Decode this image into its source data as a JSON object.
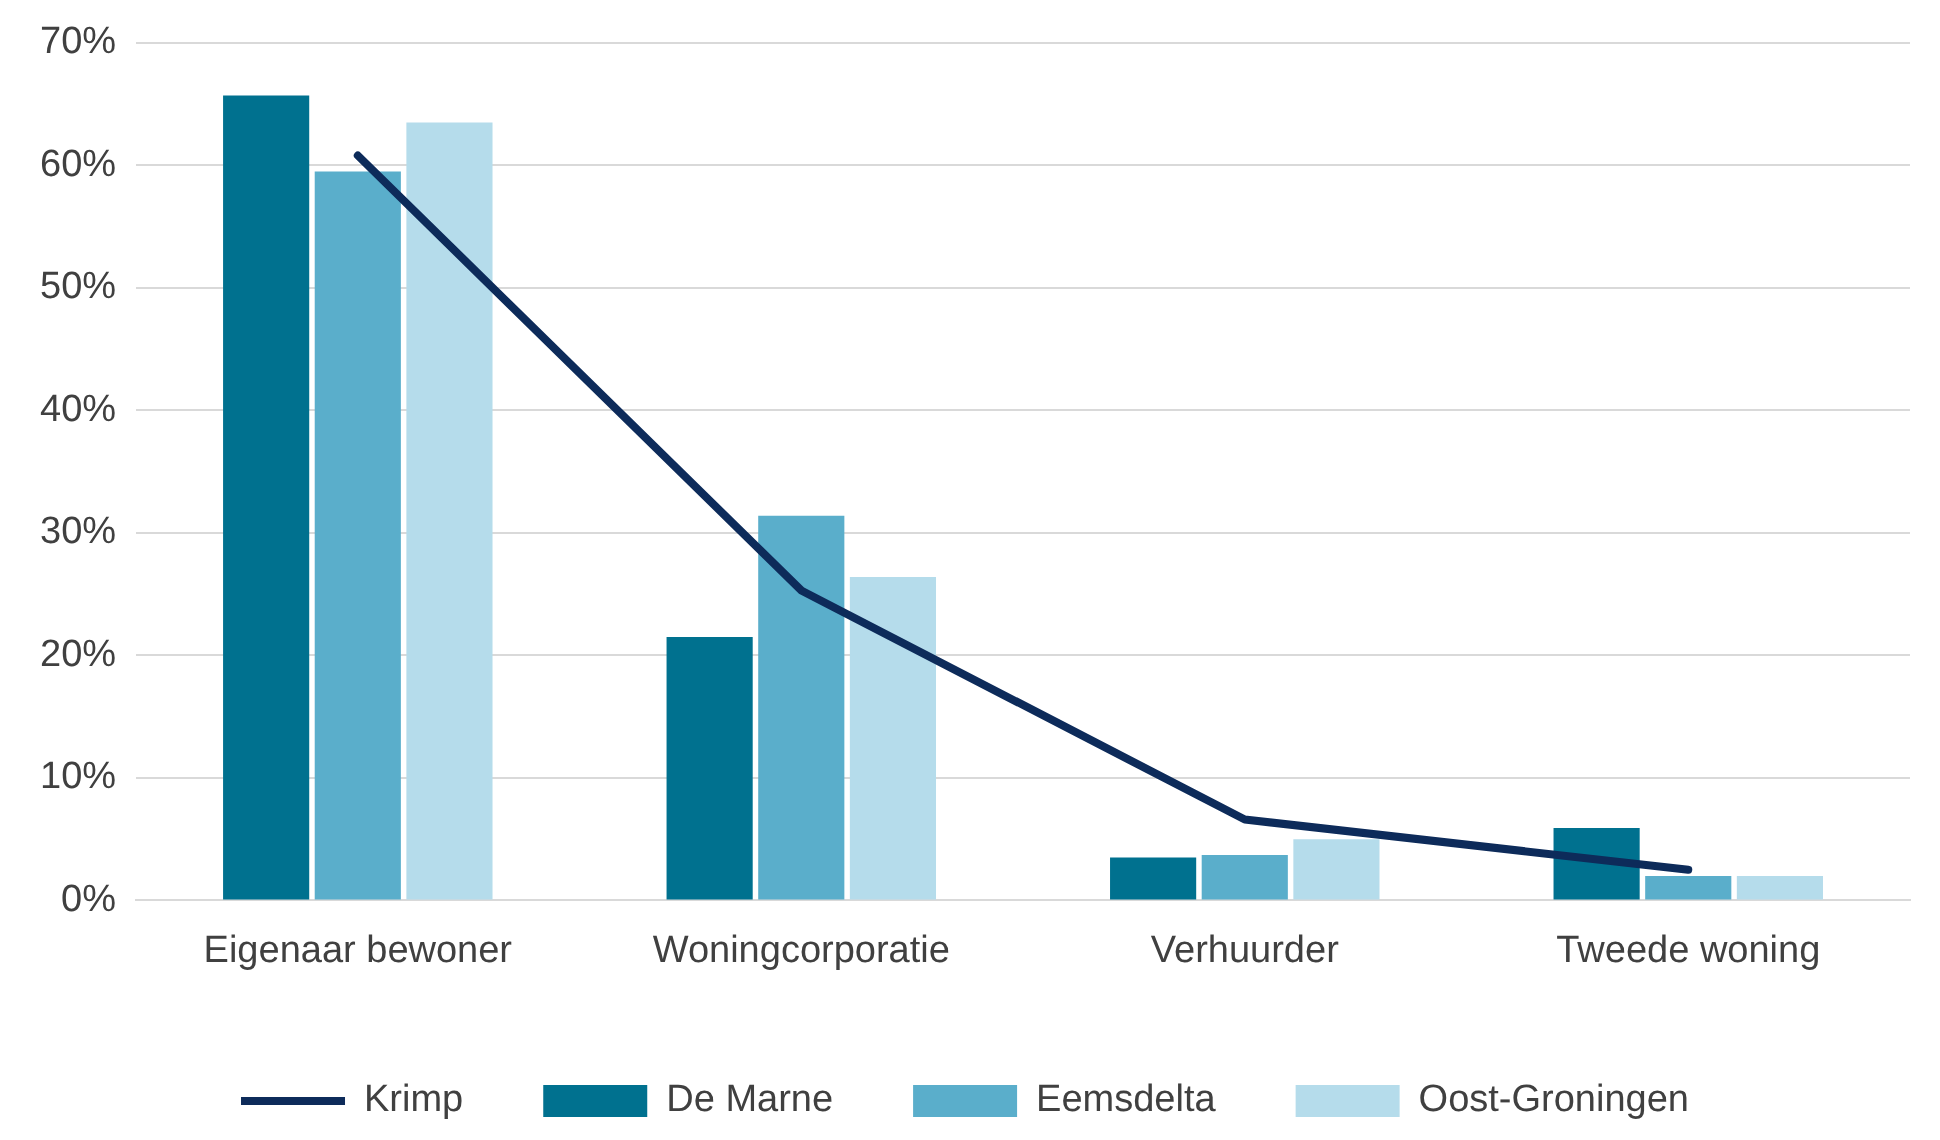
{
  "chart_data": {
    "type": "bar",
    "categories": [
      "Eigenaar bewoner",
      "Woningcorporatie",
      "Verhuurder",
      "Tweede woning"
    ],
    "series": [
      {
        "name": "De Marne",
        "color": "#00718f",
        "values": [
          65.7,
          21.5,
          3.5,
          5.9
        ]
      },
      {
        "name": "Eemsdelta",
        "color": "#5aaecb",
        "values": [
          59.5,
          31.4,
          3.7,
          2.0
        ]
      },
      {
        "name": "Oost-Groningen",
        "color": "#b5dceb",
        "values": [
          63.5,
          26.4,
          5.0,
          2.0
        ]
      },
      {
        "name": "Krimp",
        "type": "line",
        "color": "#0d2b5a",
        "values": [
          60.8,
          25.3,
          6.6,
          2.5
        ],
        "marker": "none"
      }
    ],
    "ylim": [
      0,
      70
    ],
    "yticks": [
      {
        "value": 0,
        "label": "0%"
      },
      {
        "value": 10,
        "label": "10%"
      },
      {
        "value": 20,
        "label": "20%"
      },
      {
        "value": 30,
        "label": "30%"
      },
      {
        "value": 40,
        "label": "40%"
      },
      {
        "value": 50,
        "label": "50%"
      },
      {
        "value": 60,
        "label": "60%"
      },
      {
        "value": 70,
        "label": "70%"
      }
    ],
    "grid": "y",
    "legend": "bottom"
  }
}
